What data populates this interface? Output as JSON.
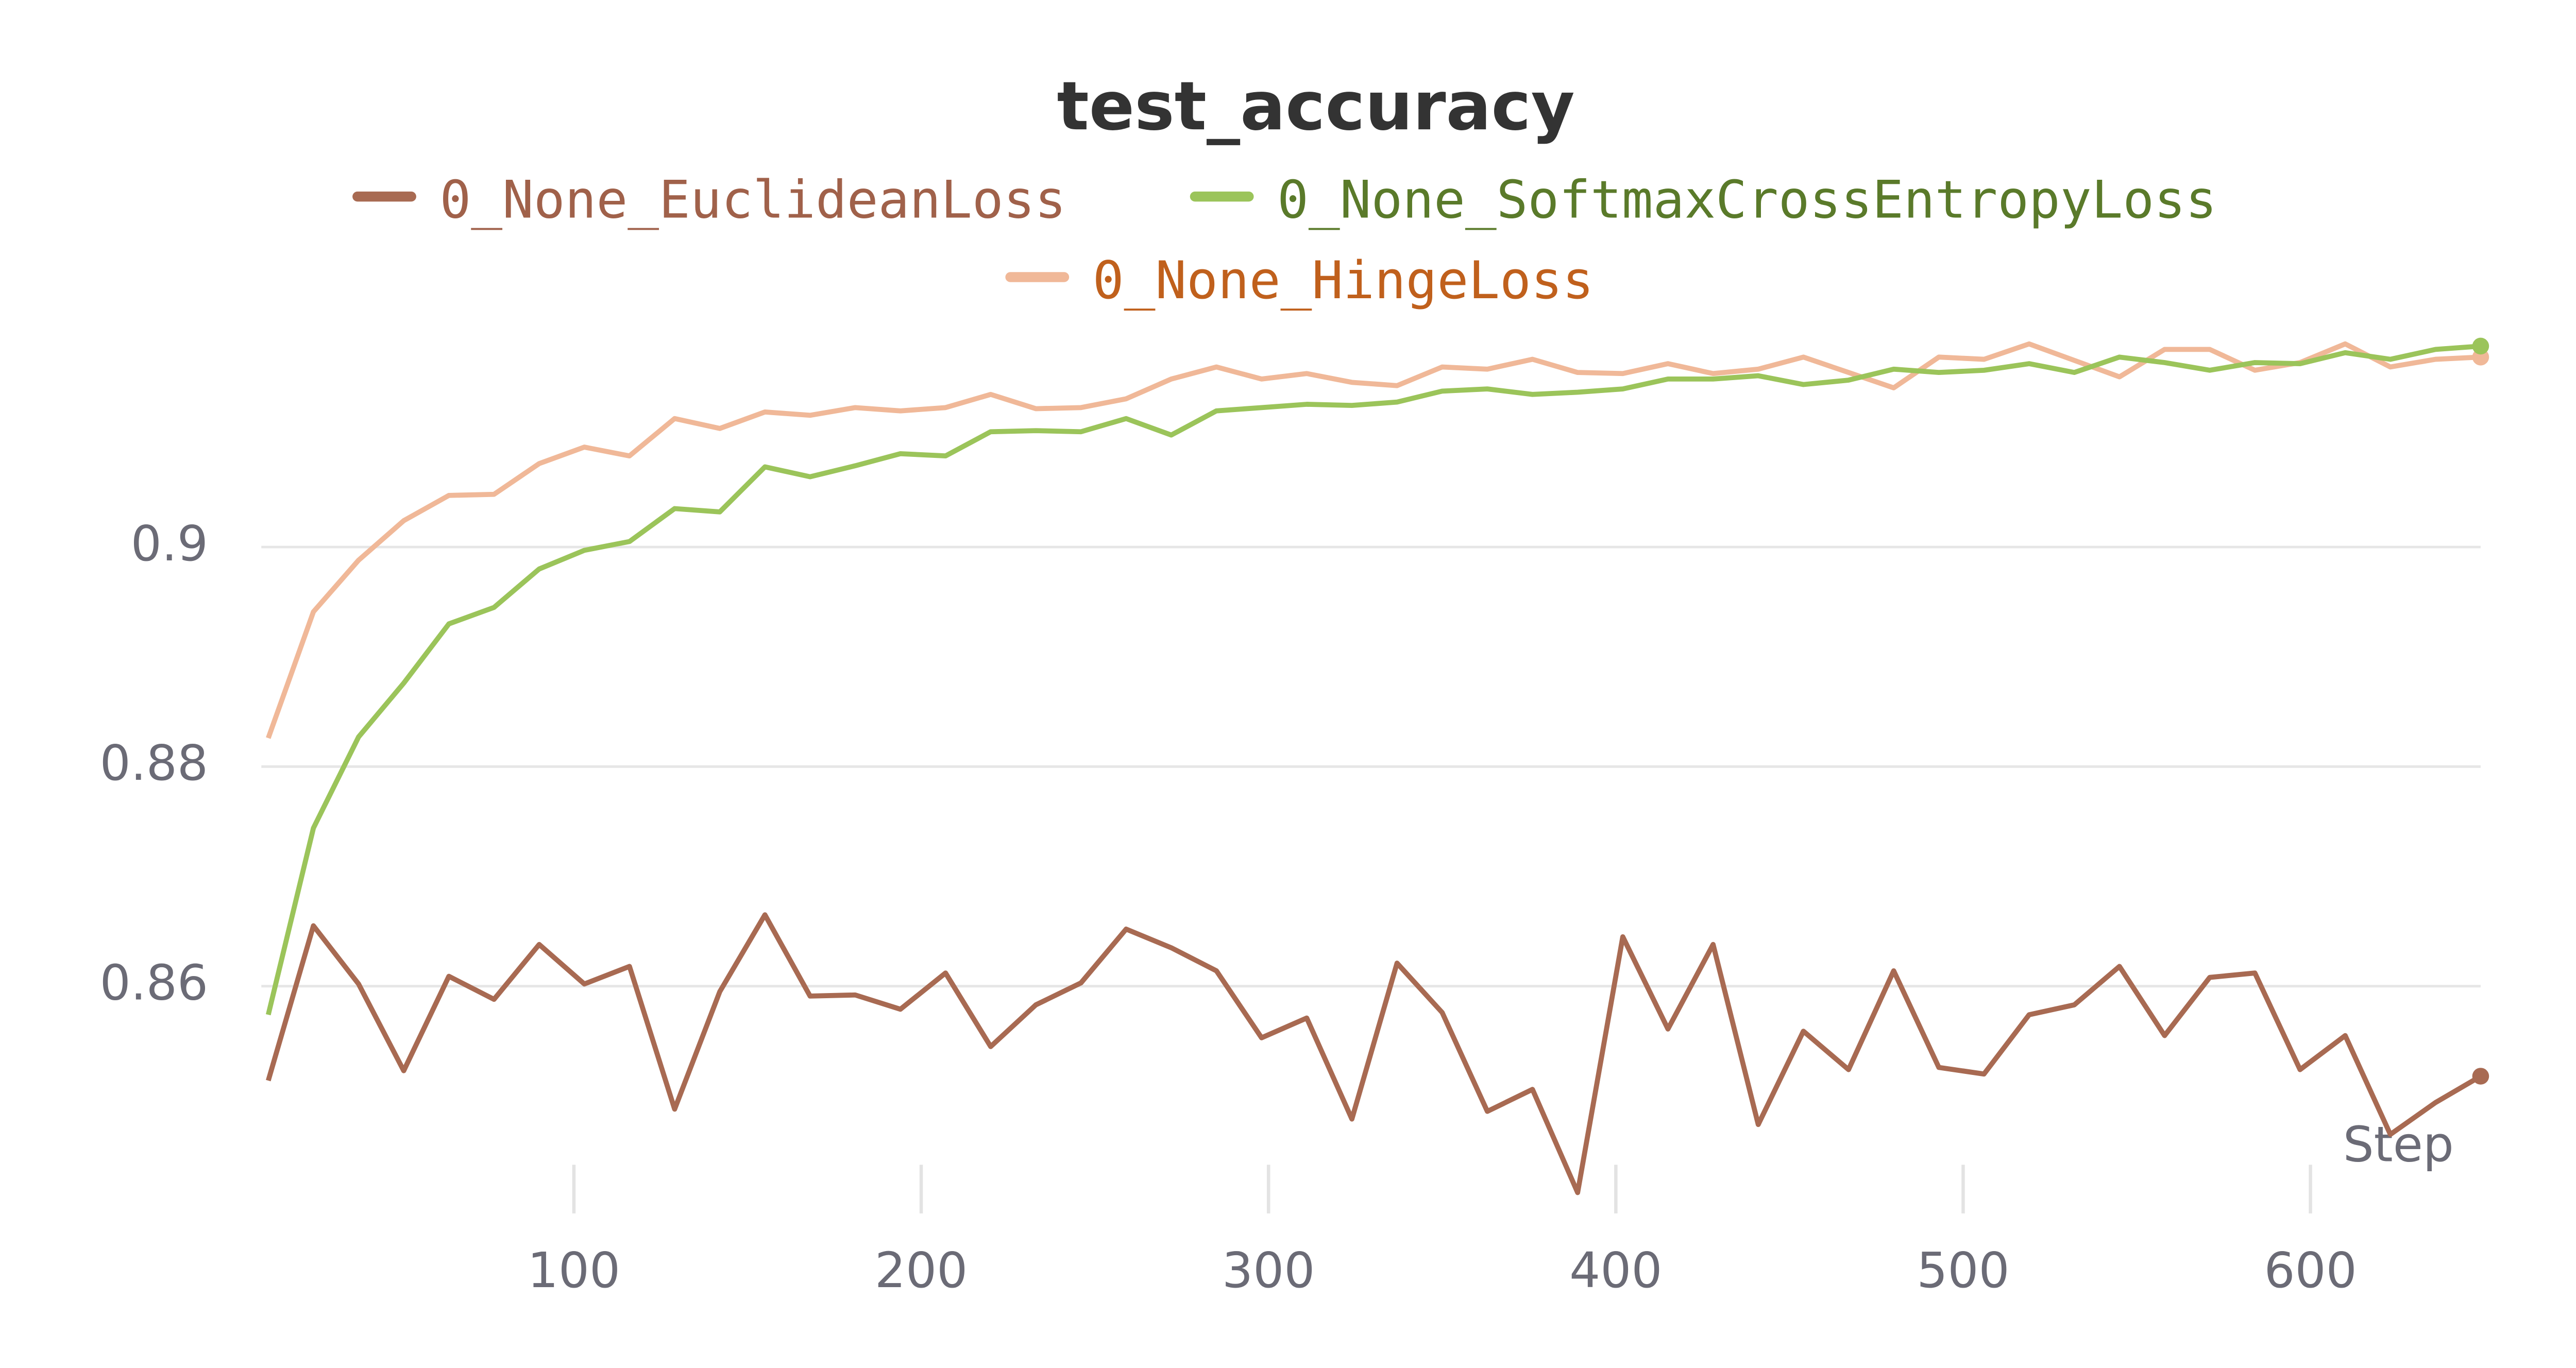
{
  "chart_data": {
    "type": "line",
    "title": "test_accuracy",
    "xlabel": "Step",
    "x": [
      12,
      25,
      38,
      51,
      64,
      77,
      90,
      103,
      116,
      129,
      142,
      155,
      168,
      181,
      194,
      207,
      220,
      233,
      246,
      259,
      272,
      285,
      298,
      311,
      324,
      337,
      350,
      363,
      376,
      389,
      402,
      415,
      428,
      441,
      454,
      467,
      480,
      493,
      506,
      519,
      532,
      545,
      558,
      571,
      584,
      597,
      610,
      623,
      636,
      649
    ],
    "series": [
      {
        "name": "0_None_EuclideanLoss",
        "color": "#a86a52",
        "label_color": "#a0614a",
        "values": [
          0.8514,
          0.8655,
          0.8602,
          0.8523,
          0.8609,
          0.8588,
          0.8638,
          0.8602,
          0.8618,
          0.8488,
          0.8595,
          0.8665,
          0.8591,
          0.8592,
          0.8579,
          0.8612,
          0.8545,
          0.8583,
          0.8603,
          0.8652,
          0.8635,
          0.8614,
          0.8553,
          0.8571,
          0.8479,
          0.8621,
          0.8576,
          0.8486,
          0.8506,
          0.8412,
          0.8645,
          0.8561,
          0.8638,
          0.8474,
          0.8559,
          0.8524,
          0.8614,
          0.8526,
          0.852,
          0.8574,
          0.8583,
          0.8618,
          0.8555,
          0.8608,
          0.8612,
          0.8524,
          0.8555,
          0.8465,
          0.8494,
          0.8518
        ]
      },
      {
        "name": "0_None_SoftmaxCrossEntropyLoss",
        "color": "#9bc45a",
        "label_color": "#5a7a2a",
        "values": [
          0.8574,
          0.8744,
          0.8827,
          0.8876,
          0.893,
          0.8945,
          0.898,
          0.8997,
          0.9005,
          0.9035,
          0.9032,
          0.9073,
          0.9064,
          0.9074,
          0.9085,
          0.9083,
          0.9105,
          0.9106,
          0.9105,
          0.9117,
          0.9102,
          0.9124,
          0.9127,
          0.913,
          0.9129,
          0.9132,
          0.9142,
          0.9144,
          0.9139,
          0.9141,
          0.9144,
          0.9153,
          0.9153,
          0.9156,
          0.9148,
          0.9152,
          0.9162,
          0.9159,
          0.9161,
          0.9167,
          0.9159,
          0.9173,
          0.9168,
          0.9161,
          0.9168,
          0.9167,
          0.9177,
          0.9171,
          0.918,
          0.9183
        ]
      },
      {
        "name": "0_None_HingeLoss",
        "color": "#f0b898",
        "label_color": "#c0601c",
        "values": [
          0.8826,
          0.8941,
          0.8988,
          0.9024,
          0.9047,
          0.9048,
          0.9076,
          0.9091,
          0.9083,
          0.9117,
          0.9108,
          0.9123,
          0.912,
          0.9127,
          0.9124,
          0.9127,
          0.9139,
          0.9126,
          0.9127,
          0.9135,
          0.9153,
          0.9164,
          0.9153,
          0.9158,
          0.915,
          0.9147,
          0.9164,
          0.9162,
          0.9171,
          0.9159,
          0.9158,
          0.9167,
          0.9158,
          0.9162,
          0.9173,
          0.9159,
          0.9145,
          0.9173,
          0.9171,
          0.9185,
          0.917,
          0.9155,
          0.918,
          0.918,
          0.9161,
          0.9168,
          0.9185,
          0.9164,
          0.9171,
          0.9173
        ]
      }
    ],
    "xlim": [
      10,
      649
    ],
    "xticks": [
      100,
      200,
      300,
      400,
      500,
      600
    ],
    "ylim": [
      0.839,
      0.92
    ],
    "yticks": [
      0.86,
      0.88,
      0.9
    ],
    "grid": true
  }
}
